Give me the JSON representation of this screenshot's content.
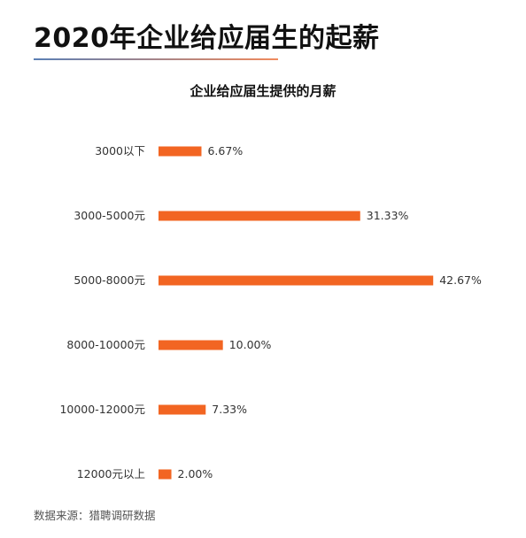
{
  "header": {
    "title": "2020年企业给应届生的起薪"
  },
  "source": {
    "text": "数据来源：猎聘调研数据"
  },
  "colors": {
    "bar": "#f26522",
    "rule_start": "#5b7fb5",
    "rule_end": "#f08a5d"
  },
  "chart_data": {
    "type": "bar",
    "orientation": "horizontal",
    "title": "企业给应届生提供的月薪",
    "categories": [
      "3000以下",
      "3000-5000元",
      "5000-8000元",
      "8000-10000元",
      "10000-12000元",
      "12000元以上"
    ],
    "values": [
      6.67,
      31.33,
      42.67,
      10.0,
      7.33,
      2.0
    ],
    "value_labels": [
      "6.67%",
      "31.33%",
      "42.67%",
      "10.00%",
      "7.33%",
      "2.00%"
    ],
    "unit": "%",
    "grid": false,
    "legend": "none"
  }
}
